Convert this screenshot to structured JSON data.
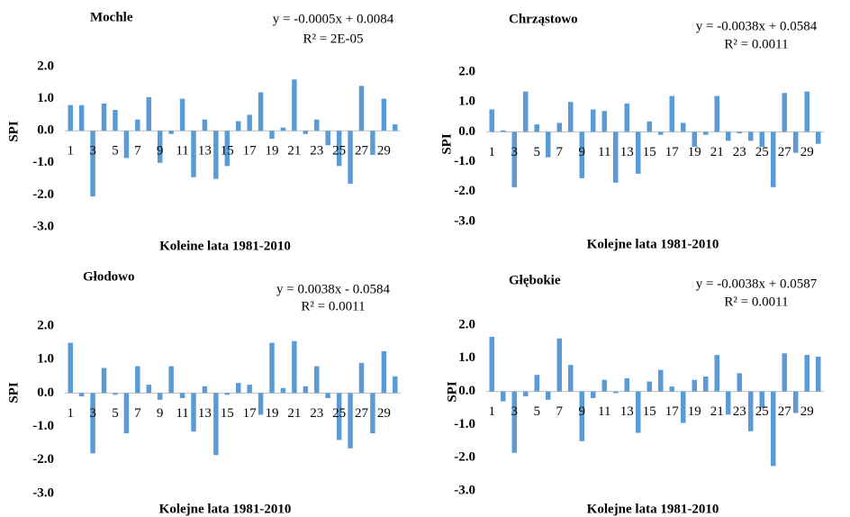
{
  "chart_data": [
    {
      "type": "bar",
      "title": "Mochle",
      "equation": [
        "y = -0.0005x + 0.0084",
        "R² = 2E-05"
      ],
      "x_label": "Koleine lata 1981-2010",
      "y_label": "SPI",
      "categories": [
        1,
        null,
        3,
        null,
        5,
        null,
        7,
        null,
        9,
        null,
        11,
        null,
        13,
        null,
        15,
        null,
        17,
        null,
        19,
        null,
        21,
        null,
        23,
        null,
        25,
        null,
        27,
        null,
        29,
        null
      ],
      "values": [
        0.8,
        0.8,
        -2.05,
        0.85,
        0.65,
        -0.85,
        0.35,
        1.05,
        -1.0,
        -0.1,
        1.0,
        -1.45,
        0.35,
        -1.5,
        -1.1,
        0.3,
        0.5,
        1.2,
        -0.25,
        0.1,
        1.6,
        -0.1,
        0.35,
        -0.45,
        -1.1,
        -1.65,
        1.4,
        -0.75,
        1.0,
        0.2
      ],
      "color": "#5b9bd5",
      "ylim": [
        -3,
        2
      ],
      "yticks": [
        {
          "value": -3,
          "label": "-3.0"
        },
        {
          "value": -2,
          "label": "-2.0"
        },
        {
          "value": -1,
          "label": "-1.0"
        },
        {
          "value": 0,
          "label": "0.0"
        },
        {
          "value": 1,
          "label": "1.0"
        },
        {
          "value": 2,
          "label": "2.0"
        }
      ],
      "grid": false
    },
    {
      "type": "bar",
      "title": "Chrząstowo",
      "equation": [
        "y = -0.0038x + 0.0584",
        "R² = 0.0011"
      ],
      "x_label": "Kolejne lata 1981-2010",
      "y_label": "SPI",
      "categories": [
        1,
        null,
        3,
        null,
        5,
        null,
        7,
        null,
        9,
        null,
        11,
        null,
        13,
        null,
        15,
        null,
        17,
        null,
        19,
        null,
        21,
        null,
        23,
        null,
        25,
        null,
        27,
        null,
        29,
        null
      ],
      "values": [
        0.75,
        0.05,
        -1.85,
        1.35,
        0.25,
        -0.85,
        0.3,
        1.0,
        -1.55,
        0.75,
        0.7,
        -1.7,
        0.95,
        -1.4,
        0.35,
        -0.1,
        1.2,
        0.3,
        -0.5,
        -0.1,
        1.2,
        -0.3,
        -0.05,
        -0.3,
        -0.5,
        -1.85,
        1.3,
        -0.7,
        1.35,
        -0.4
      ],
      "color": "#5b9bd5",
      "ylim": [
        -3,
        2
      ],
      "yticks": [
        {
          "value": -3,
          "label": "-3.0"
        },
        {
          "value": -2,
          "label": "-2.0"
        },
        {
          "value": -1,
          "label": "-1.0"
        },
        {
          "value": 0,
          "label": "0.0"
        },
        {
          "value": 1,
          "label": "1.0"
        },
        {
          "value": 2,
          "label": "2.0"
        }
      ],
      "grid": false
    },
    {
      "type": "bar",
      "title": "Głodowo",
      "equation": [
        "y = 0.0038x - 0.0584",
        "R² = 0.0011"
      ],
      "x_label": "Kolejne lata 1981-2010",
      "y_label": "SPI",
      "categories": [
        1,
        null,
        3,
        null,
        5,
        null,
        7,
        null,
        9,
        null,
        11,
        null,
        13,
        null,
        15,
        null,
        17,
        null,
        19,
        null,
        21,
        null,
        23,
        null,
        25,
        null,
        27,
        null,
        29,
        null
      ],
      "values": [
        1.5,
        -0.1,
        -1.8,
        0.75,
        -0.05,
        -1.2,
        0.8,
        0.25,
        -0.2,
        0.8,
        -0.15,
        -1.15,
        0.2,
        -1.85,
        -0.05,
        0.3,
        0.25,
        -0.65,
        1.5,
        0.15,
        1.55,
        0.2,
        0.8,
        -0.15,
        -1.4,
        -1.65,
        0.9,
        -1.2,
        1.25,
        0.5
      ],
      "color": "#5b9bd5",
      "ylim": [
        -3,
        2
      ],
      "yticks": [
        {
          "value": -3,
          "label": "-3.0"
        },
        {
          "value": -2,
          "label": "-2.0"
        },
        {
          "value": -1,
          "label": "-1.0"
        },
        {
          "value": 0,
          "label": "0.0"
        },
        {
          "value": 1,
          "label": "1.0"
        },
        {
          "value": 2,
          "label": "2.0"
        }
      ],
      "grid": false
    },
    {
      "type": "bar",
      "title": "Głębokie",
      "equation": [
        "y = -0.0038x + 0.0587",
        "R² = 0.0011"
      ],
      "x_label": "Kolejne lata 1981-2010",
      "y_label": "SPI",
      "categories": [
        1,
        null,
        3,
        null,
        5,
        null,
        7,
        null,
        9,
        null,
        11,
        null,
        13,
        null,
        15,
        null,
        17,
        null,
        19,
        null,
        21,
        null,
        23,
        null,
        25,
        null,
        27,
        null,
        29,
        null
      ],
      "values": [
        1.65,
        -0.3,
        -1.85,
        -0.15,
        0.5,
        -0.25,
        1.6,
        0.8,
        -1.5,
        -0.2,
        0.35,
        -0.05,
        0.4,
        -1.25,
        0.3,
        0.65,
        0.15,
        -0.95,
        0.35,
        0.45,
        1.1,
        -0.7,
        0.55,
        -1.2,
        -0.5,
        -2.25,
        1.15,
        -0.65,
        1.1,
        1.05
      ],
      "color": "#5b9bd5",
      "ylim": [
        -3,
        2
      ],
      "yticks": [
        {
          "value": -3,
          "label": "-3.0"
        },
        {
          "value": -2,
          "label": "-2.0"
        },
        {
          "value": -1,
          "label": "-1.0"
        },
        {
          "value": 0,
          "label": "0.0"
        },
        {
          "value": 1,
          "label": "1.0"
        },
        {
          "value": 2,
          "label": "2.0"
        }
      ],
      "grid": false
    }
  ]
}
